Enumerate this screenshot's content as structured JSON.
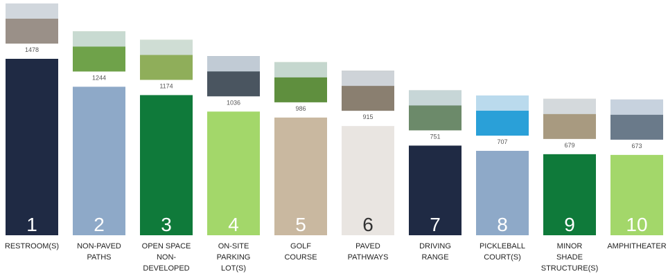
{
  "chart_data": {
    "type": "bar",
    "categories": [
      "RESTROOM(S)",
      "NON-PAVED\nPATHS",
      "OPEN SPACE\nNON-\nDEVELOPED",
      "ON-SITE\nPARKING\nLOT(S)",
      "GOLF\nCOURSE",
      "PAVED\nPATHWAYS",
      "DRIVING\nRANGE",
      "PICKLEBALL\nCOURT(S)",
      "MINOR\nSHADE\nSTRUCTURE(S)",
      "AMPHITHEATER"
    ],
    "values": [
      1478,
      1244,
      1174,
      1036,
      986,
      915,
      751,
      707,
      679,
      673
    ],
    "ranks": [
      1,
      2,
      3,
      4,
      5,
      6,
      7,
      8,
      9,
      10
    ],
    "colors": [
      "#1f2a44",
      "#8ea9c8",
      "#0f7a3a",
      "#a3d76a",
      "#c9b8a0",
      "#e9e5e1",
      "#1f2a44",
      "#8ea9c8",
      "#0f7a3a",
      "#a3d76a"
    ],
    "rank_colors": [
      "#ffffff",
      "#ffffff",
      "#ffffff",
      "#ffffff",
      "#ffffff",
      "#333333",
      "#ffffff",
      "#ffffff",
      "#ffffff",
      "#ffffff"
    ]
  }
}
